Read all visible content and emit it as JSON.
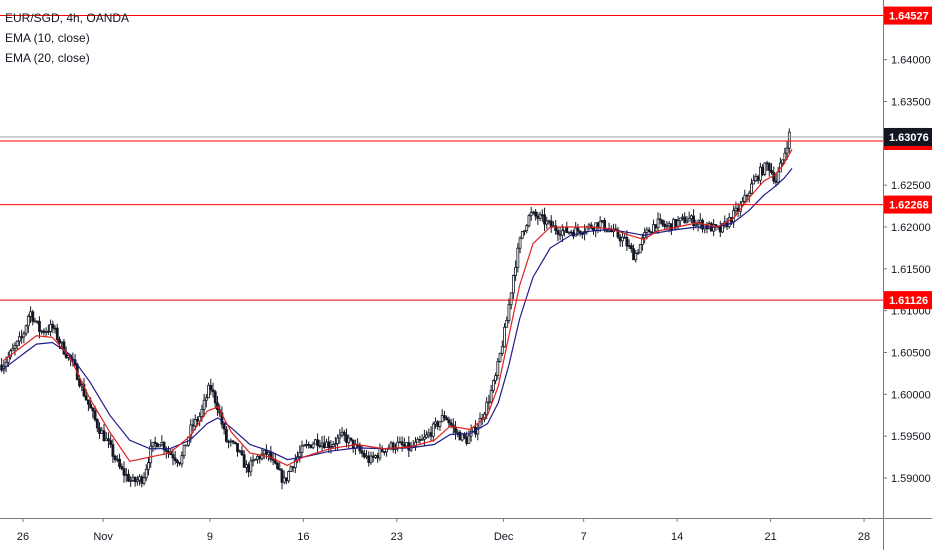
{
  "legend": {
    "symbol": "EUR/SGD, 4h, OANDA",
    "ema1": "EMA (10, close)",
    "ema2": "EMA (20, close)"
  },
  "colors": {
    "up": "#131722",
    "level_line": "#ff0000",
    "price_line": "#131722",
    "ema10": "#e02020",
    "ema20": "#1c1c8c"
  },
  "chart_data": {
    "type": "candlestick",
    "y_range": [
      1.585,
      1.6475
    ],
    "y_ticks": [
      "1.59000",
      "1.59500",
      "1.60000",
      "1.60500",
      "1.61000",
      "1.61500",
      "1.62000",
      "1.62500",
      "1.63000",
      "1.63500",
      "1.64000"
    ],
    "x_ticks": [
      {
        "label": "26",
        "day": 0
      },
      {
        "label": "Nov",
        "day": 6
      },
      {
        "label": "9",
        "day": 14
      },
      {
        "label": "16",
        "day": 21
      },
      {
        "label": "23",
        "day": 28
      },
      {
        "label": "Dec",
        "day": 36
      },
      {
        "label": "7",
        "day": 42
      },
      {
        "label": "14",
        "day": 49
      },
      {
        "label": "21",
        "day": 56
      },
      {
        "label": "28",
        "day": 63
      }
    ],
    "horizontal_levels": [
      {
        "value": 1.64527,
        "label": "1.64527"
      },
      {
        "value": 1.63028,
        "label": "1.63028"
      },
      {
        "value": 1.62268,
        "label": "1.62268"
      },
      {
        "value": 1.61126,
        "label": "1.61126"
      }
    ],
    "last_price": {
      "value": 1.63076,
      "label": "1.63076"
    },
    "path_points": [
      [
        -1.5,
        1.6035
      ],
      [
        0,
        1.607
      ],
      [
        0.5,
        1.61
      ],
      [
        1.3,
        1.6075
      ],
      [
        2.2,
        1.608
      ],
      [
        3.0,
        1.6055
      ],
      [
        3.8,
        1.6035
      ],
      [
        4.6,
        1.6
      ],
      [
        5.5,
        1.5965
      ],
      [
        6.4,
        1.594
      ],
      [
        7.3,
        1.591
      ],
      [
        8.2,
        1.5895
      ],
      [
        9.0,
        1.59
      ],
      [
        9.6,
        1.5935
      ],
      [
        10.2,
        1.5945
      ],
      [
        11.0,
        1.593
      ],
      [
        11.8,
        1.592
      ],
      [
        12.6,
        1.596
      ],
      [
        13.3,
        1.5975
      ],
      [
        14.0,
        1.601
      ],
      [
        14.6,
        1.5985
      ],
      [
        15.2,
        1.5945
      ],
      [
        16.0,
        1.5935
      ],
      [
        16.8,
        1.591
      ],
      [
        17.6,
        1.5925
      ],
      [
        18.3,
        1.593
      ],
      [
        19.0,
        1.591
      ],
      [
        19.6,
        1.5895
      ],
      [
        20.1,
        1.5915
      ],
      [
        21.0,
        1.5935
      ],
      [
        22.0,
        1.5945
      ],
      [
        23.0,
        1.594
      ],
      [
        24.0,
        1.595
      ],
      [
        25.0,
        1.5935
      ],
      [
        26.0,
        1.592
      ],
      [
        27.0,
        1.5935
      ],
      [
        28.0,
        1.594
      ],
      [
        29.0,
        1.5935
      ],
      [
        30.0,
        1.5945
      ],
      [
        30.8,
        1.596
      ],
      [
        31.6,
        1.5975
      ],
      [
        32.4,
        1.5955
      ],
      [
        33.2,
        1.5945
      ],
      [
        34.0,
        1.596
      ],
      [
        34.8,
        1.599
      ],
      [
        35.4,
        1.602
      ],
      [
        36.2,
        1.6085
      ],
      [
        36.8,
        1.615
      ],
      [
        37.4,
        1.6195
      ],
      [
        38.0,
        1.6215
      ],
      [
        38.8,
        1.621
      ],
      [
        39.6,
        1.62
      ],
      [
        40.4,
        1.6195
      ],
      [
        41.4,
        1.6195
      ],
      [
        42.4,
        1.62
      ],
      [
        43.2,
        1.6205
      ],
      [
        44.0,
        1.6195
      ],
      [
        45.0,
        1.6185
      ],
      [
        45.8,
        1.6165
      ],
      [
        46.6,
        1.619
      ],
      [
        47.4,
        1.6205
      ],
      [
        48.2,
        1.62
      ],
      [
        49.0,
        1.6205
      ],
      [
        49.8,
        1.621
      ],
      [
        50.6,
        1.6205
      ],
      [
        51.4,
        1.62
      ],
      [
        52.2,
        1.6195
      ],
      [
        53.0,
        1.621
      ],
      [
        53.8,
        1.6225
      ],
      [
        54.6,
        1.625
      ],
      [
        55.2,
        1.6265
      ],
      [
        55.8,
        1.6275
      ],
      [
        56.4,
        1.6255
      ],
      [
        56.9,
        1.628
      ],
      [
        57.4,
        1.631
      ]
    ],
    "ema10_points": [
      [
        -1.5,
        1.604
      ],
      [
        1.0,
        1.607
      ],
      [
        2.2,
        1.6068
      ],
      [
        3.5,
        1.6045
      ],
      [
        5.0,
        1.5995
      ],
      [
        6.5,
        1.5955
      ],
      [
        8.0,
        1.592
      ],
      [
        9.5,
        1.5925
      ],
      [
        11.0,
        1.593
      ],
      [
        12.5,
        1.595
      ],
      [
        13.8,
        1.598
      ],
      [
        14.6,
        1.5985
      ],
      [
        15.6,
        1.5955
      ],
      [
        17.0,
        1.593
      ],
      [
        18.5,
        1.5925
      ],
      [
        19.8,
        1.5915
      ],
      [
        21.0,
        1.5925
      ],
      [
        23.0,
        1.5935
      ],
      [
        25.0,
        1.594
      ],
      [
        27.0,
        1.5935
      ],
      [
        29.0,
        1.5937
      ],
      [
        30.8,
        1.5945
      ],
      [
        32.0,
        1.5962
      ],
      [
        33.5,
        1.5958
      ],
      [
        34.8,
        1.5975
      ],
      [
        35.6,
        1.601
      ],
      [
        36.4,
        1.607
      ],
      [
        37.2,
        1.613
      ],
      [
        38.2,
        1.618
      ],
      [
        39.5,
        1.62
      ],
      [
        41.0,
        1.62
      ],
      [
        42.5,
        1.62
      ],
      [
        44.0,
        1.6198
      ],
      [
        45.5,
        1.619
      ],
      [
        46.5,
        1.6185
      ],
      [
        47.5,
        1.6195
      ],
      [
        49.0,
        1.62
      ],
      [
        50.5,
        1.6205
      ],
      [
        52.0,
        1.62
      ],
      [
        53.2,
        1.621
      ],
      [
        54.4,
        1.6235
      ],
      [
        55.5,
        1.6255
      ],
      [
        56.3,
        1.6262
      ],
      [
        57.0,
        1.6275
      ],
      [
        57.6,
        1.6293
      ]
    ],
    "ema20_points": [
      [
        -1.5,
        1.603
      ],
      [
        1.0,
        1.606
      ],
      [
        2.2,
        1.6062
      ],
      [
        3.5,
        1.6048
      ],
      [
        5.0,
        1.6015
      ],
      [
        6.5,
        1.5975
      ],
      [
        8.0,
        1.5945
      ],
      [
        9.5,
        1.5935
      ],
      [
        11.0,
        1.5935
      ],
      [
        12.5,
        1.5945
      ],
      [
        13.8,
        1.5965
      ],
      [
        14.6,
        1.5972
      ],
      [
        15.6,
        1.596
      ],
      [
        17.0,
        1.594
      ],
      [
        18.5,
        1.5932
      ],
      [
        19.8,
        1.5922
      ],
      [
        21.0,
        1.5925
      ],
      [
        23.0,
        1.5932
      ],
      [
        25.0,
        1.5936
      ],
      [
        27.0,
        1.5935
      ],
      [
        29.0,
        1.5936
      ],
      [
        30.8,
        1.594
      ],
      [
        32.0,
        1.5952
      ],
      [
        33.5,
        1.5953
      ],
      [
        34.8,
        1.5965
      ],
      [
        35.6,
        1.599
      ],
      [
        36.4,
        1.6035
      ],
      [
        37.2,
        1.609
      ],
      [
        38.2,
        1.614
      ],
      [
        39.5,
        1.6175
      ],
      [
        41.0,
        1.619
      ],
      [
        42.5,
        1.6195
      ],
      [
        44.0,
        1.6197
      ],
      [
        45.5,
        1.6193
      ],
      [
        46.5,
        1.619
      ],
      [
        47.5,
        1.6193
      ],
      [
        49.0,
        1.6197
      ],
      [
        50.5,
        1.62
      ],
      [
        52.0,
        1.62
      ],
      [
        53.2,
        1.6205
      ],
      [
        54.4,
        1.622
      ],
      [
        55.5,
        1.6238
      ],
      [
        56.3,
        1.6248
      ],
      [
        57.0,
        1.6258
      ],
      [
        57.6,
        1.627
      ]
    ]
  }
}
